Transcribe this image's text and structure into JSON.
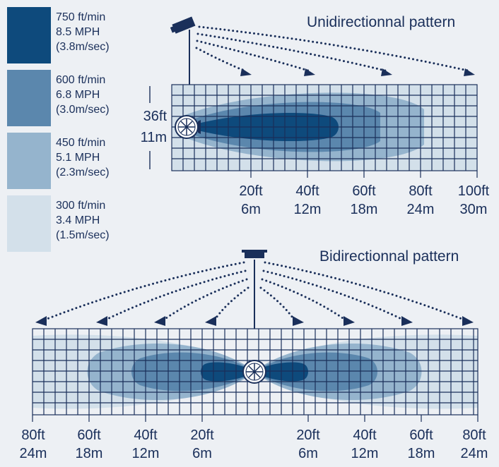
{
  "colors": {
    "speed_750": "#0e4a7c",
    "speed_600": "#5b87ad",
    "speed_450": "#95b4cd",
    "speed_300": "#d3e0ea",
    "ink": "#1a2f5a",
    "background": "#edf0f4"
  },
  "legend": [
    {
      "fpm": "750 ft/min",
      "mph": "8.5 MPH",
      "ms": "(3.8m/sec)"
    },
    {
      "fpm": "600 ft/min",
      "mph": "6.8 MPH",
      "ms": "(3.0m/sec)"
    },
    {
      "fpm": "450 ft/min",
      "mph": "5.1 MPH",
      "ms": "(2.3m/sec)"
    },
    {
      "fpm": "300 ft/min",
      "mph": "3.4 MPH",
      "ms": "(1.5m/sec)"
    }
  ],
  "unidirectional": {
    "title": "Unidirectionnal pattern",
    "height_ft": "36ft",
    "height_m": "11m",
    "ticks": [
      {
        "ft": "20ft",
        "m": "6m"
      },
      {
        "ft": "40ft",
        "m": "12m"
      },
      {
        "ft": "60ft",
        "m": "18m"
      },
      {
        "ft": "80ft",
        "m": "24m"
      },
      {
        "ft": "100ft",
        "m": "30m"
      }
    ]
  },
  "bidirectional": {
    "title": "Bidirectionnal pattern",
    "ticks_left": [
      {
        "ft": "80ft",
        "m": "24m"
      },
      {
        "ft": "60ft",
        "m": "18m"
      },
      {
        "ft": "40ft",
        "m": "12m"
      },
      {
        "ft": "20ft",
        "m": "6m"
      }
    ],
    "ticks_right": [
      {
        "ft": "20ft",
        "m": "6m"
      },
      {
        "ft": "40ft",
        "m": "12m"
      },
      {
        "ft": "60ft",
        "m": "18m"
      },
      {
        "ft": "80ft",
        "m": "24m"
      }
    ]
  }
}
